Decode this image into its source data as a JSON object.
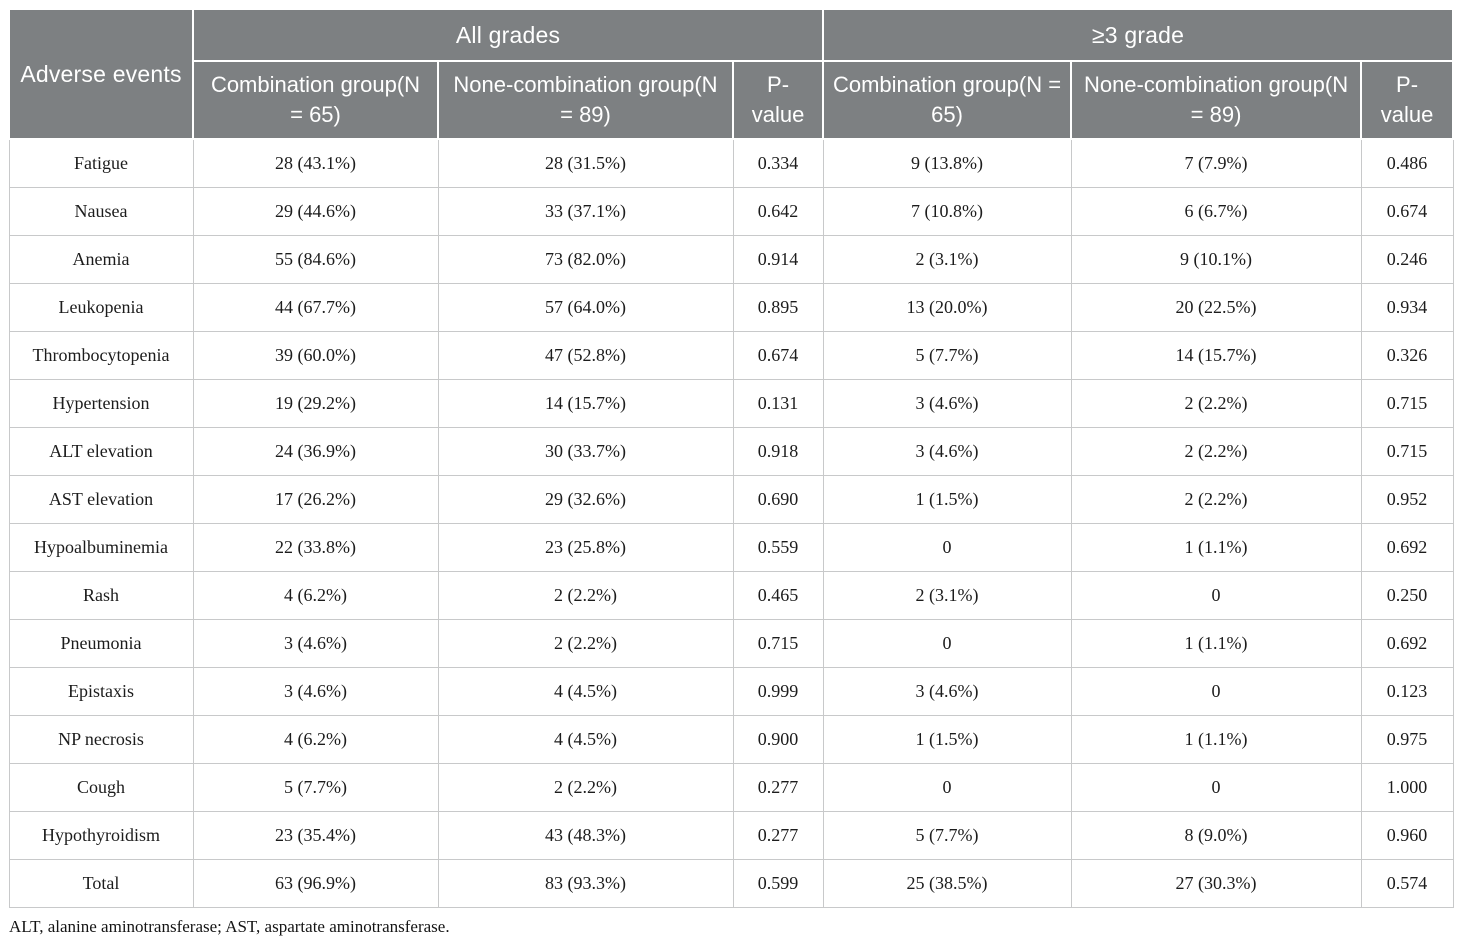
{
  "table": {
    "header": {
      "adverse_events": "Adverse events",
      "all_grades": "All grades",
      "grade3": "≥3 grade",
      "combination": "Combination group(N = 65)",
      "none_combination": "None-combination group(N = 89)",
      "p_value": "P-value"
    },
    "rows": [
      [
        "Fatigue",
        "28 (43.1%)",
        "28 (31.5%)",
        "0.334",
        "9 (13.8%)",
        "7 (7.9%)",
        "0.486"
      ],
      [
        "Nausea",
        "29 (44.6%)",
        "33 (37.1%)",
        "0.642",
        "7 (10.8%)",
        "6 (6.7%)",
        "0.674"
      ],
      [
        "Anemia",
        "55 (84.6%)",
        "73 (82.0%)",
        "0.914",
        "2 (3.1%)",
        "9 (10.1%)",
        "0.246"
      ],
      [
        "Leukopenia",
        "44 (67.7%)",
        "57 (64.0%)",
        "0.895",
        "13 (20.0%)",
        "20 (22.5%)",
        "0.934"
      ],
      [
        "Thrombocytopenia",
        "39 (60.0%)",
        "47 (52.8%)",
        "0.674",
        "5 (7.7%)",
        "14 (15.7%)",
        "0.326"
      ],
      [
        "Hypertension",
        "19 (29.2%)",
        "14 (15.7%)",
        "0.131",
        "3 (4.6%)",
        "2 (2.2%)",
        "0.715"
      ],
      [
        "ALT elevation",
        "24 (36.9%)",
        "30 (33.7%)",
        "0.918",
        "3 (4.6%)",
        "2 (2.2%)",
        "0.715"
      ],
      [
        "AST elevation",
        "17 (26.2%)",
        "29 (32.6%)",
        "0.690",
        "1 (1.5%)",
        "2 (2.2%)",
        "0.952"
      ],
      [
        "Hypoalbuminemia",
        "22 (33.8%)",
        "23 (25.8%)",
        "0.559",
        "0",
        "1 (1.1%)",
        "0.692"
      ],
      [
        "Rash",
        "4 (6.2%)",
        "2 (2.2%)",
        "0.465",
        "2 (3.1%)",
        "0",
        "0.250"
      ],
      [
        "Pneumonia",
        "3 (4.6%)",
        "2 (2.2%)",
        "0.715",
        "0",
        "1 (1.1%)",
        "0.692"
      ],
      [
        "Epistaxis",
        "3 (4.6%)",
        "4 (4.5%)",
        "0.999",
        "3 (4.6%)",
        "0",
        "0.123"
      ],
      [
        "NP necrosis",
        "4 (6.2%)",
        "4 (4.5%)",
        "0.900",
        "1 (1.5%)",
        "1 (1.1%)",
        "0.975"
      ],
      [
        "Cough",
        "5 (7.7%)",
        "2 (2.2%)",
        "0.277",
        "0",
        "0",
        "1.000"
      ],
      [
        "Hypothyroidism",
        "23 (35.4%)",
        "43 (48.3%)",
        "0.277",
        "5 (7.7%)",
        "8 (9.0%)",
        "0.960"
      ],
      [
        "Total",
        "63 (96.9%)",
        "83 (93.3%)",
        "0.599",
        "25 (38.5%)",
        "27 (30.3%)",
        "0.574"
      ]
    ],
    "footnote": "ALT, alanine aminotransferase; AST, aspartate aminotransferase.",
    "colors": {
      "header_bg": "#7d8082",
      "header_text": "#ffffff",
      "body_border": "#c8c9ca",
      "body_text": "#1c1c1c"
    }
  }
}
